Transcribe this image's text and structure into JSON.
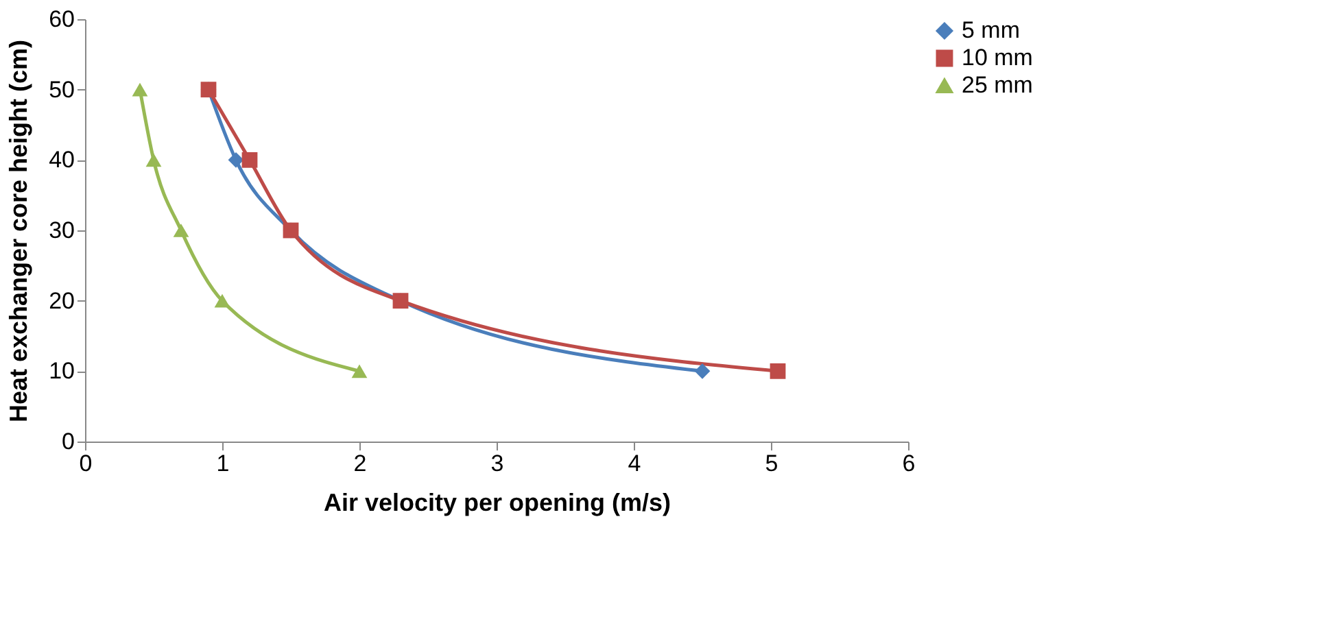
{
  "chart_data": {
    "type": "line",
    "xlabel": "Air velocity per opening (m/s)",
    "ylabel": "Heat exchanger core height (cm)",
    "xlim": [
      0,
      6
    ],
    "xticks": [
      0,
      1,
      2,
      3,
      4,
      5,
      6
    ],
    "ylim": [
      0,
      60
    ],
    "yticks": [
      0,
      10,
      20,
      30,
      40,
      50,
      60
    ],
    "legend": "right",
    "grid": false,
    "series": [
      {
        "name": "5 mm",
        "color": "#4a7ebb",
        "marker": "diamond",
        "x": [
          0.9,
          1.1,
          1.5,
          2.3,
          4.5
        ],
        "values": [
          50,
          40,
          30,
          20,
          10
        ]
      },
      {
        "name": "10 mm",
        "color": "#be4b48",
        "marker": "square",
        "x": [
          0.9,
          1.2,
          1.5,
          2.3,
          5.05
        ],
        "values": [
          50,
          40,
          30,
          20,
          10
        ]
      },
      {
        "name": "25 mm",
        "color": "#98b954",
        "marker": "triangle",
        "x": [
          0.4,
          0.5,
          0.7,
          1.0,
          2.0
        ],
        "values": [
          50,
          40,
          30,
          20,
          10
        ]
      }
    ]
  }
}
